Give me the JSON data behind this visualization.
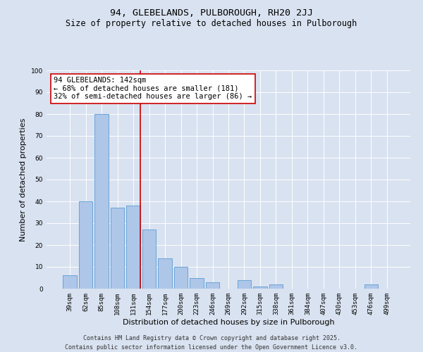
{
  "title_line1": "94, GLEBELANDS, PULBOROUGH, RH20 2JJ",
  "title_line2": "Size of property relative to detached houses in Pulborough",
  "xlabel": "Distribution of detached houses by size in Pulborough",
  "ylabel": "Number of detached properties",
  "categories": [
    "39sqm",
    "62sqm",
    "85sqm",
    "108sqm",
    "131sqm",
    "154sqm",
    "177sqm",
    "200sqm",
    "223sqm",
    "246sqm",
    "269sqm",
    "292sqm",
    "315sqm",
    "338sqm",
    "361sqm",
    "384sqm",
    "407sqm",
    "430sqm",
    "453sqm",
    "476sqm",
    "499sqm"
  ],
  "values": [
    6,
    40,
    80,
    37,
    38,
    27,
    14,
    10,
    5,
    3,
    0,
    4,
    1,
    2,
    0,
    0,
    0,
    0,
    0,
    2,
    0
  ],
  "bar_color": "#aec6e8",
  "bar_edge_color": "#5b9bd5",
  "vline_index": 4,
  "vline_color": "#cc0000",
  "annotation_text": "94 GLEBELANDS: 142sqm\n← 68% of detached houses are smaller (181)\n32% of semi-detached houses are larger (86) →",
  "annotation_box_facecolor": "#ffffff",
  "annotation_box_edgecolor": "#cc0000",
  "ylim": [
    0,
    100
  ],
  "yticks": [
    0,
    10,
    20,
    30,
    40,
    50,
    60,
    70,
    80,
    90,
    100
  ],
  "background_color": "#d9e2f0",
  "plot_bg_color": "#d9e2f0",
  "footer_line1": "Contains HM Land Registry data © Crown copyright and database right 2025.",
  "footer_line2": "Contains public sector information licensed under the Open Government Licence v3.0.",
  "title_fontsize": 9.5,
  "subtitle_fontsize": 8.5,
  "axis_label_fontsize": 8,
  "tick_fontsize": 6.5,
  "annotation_fontsize": 7.5,
  "footer_fontsize": 6
}
